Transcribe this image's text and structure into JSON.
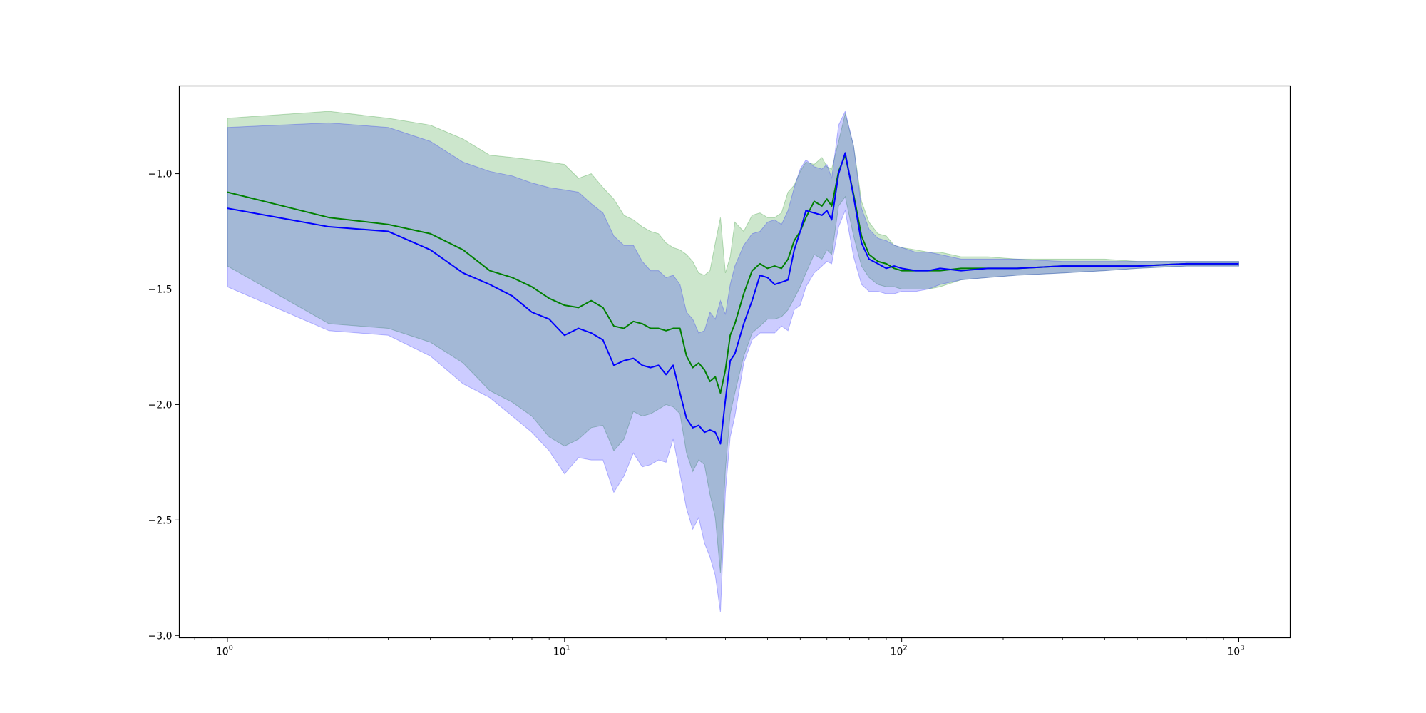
{
  "chart_data": {
    "type": "line",
    "title": "",
    "xlabel": "",
    "ylabel": "",
    "xscale": "log",
    "xlim": [
      0.72,
      1420
    ],
    "ylim": [
      -3.01,
      -0.62
    ],
    "grid": false,
    "x_ticks": [
      {
        "base": "10",
        "exp": "0",
        "value": 1
      },
      {
        "base": "10",
        "exp": "1",
        "value": 10
      },
      {
        "base": "10",
        "exp": "2",
        "value": 100
      },
      {
        "base": "10",
        "exp": "3",
        "value": 1000
      }
    ],
    "y_ticks": [
      {
        "label": "−1.0",
        "value": -1.0
      },
      {
        "label": "−1.5",
        "value": -1.5
      },
      {
        "label": "−2.0",
        "value": -2.0
      },
      {
        "label": "−2.5",
        "value": -2.5
      },
      {
        "label": "−3.0",
        "value": -3.0
      }
    ],
    "series": [
      {
        "color": "#008000",
        "band_color": "#008000",
        "band_opacity": 0.2,
        "x": [
          1,
          2,
          3,
          4,
          5,
          6,
          7,
          8,
          9,
          10,
          11,
          12,
          13,
          14,
          15,
          16,
          17,
          18,
          19,
          20,
          21,
          22,
          23,
          24,
          25,
          26,
          27,
          28,
          29,
          30,
          31,
          32,
          34,
          36,
          38,
          40,
          42,
          44,
          46,
          48,
          50,
          52,
          55,
          58,
          60,
          62,
          65,
          68,
          72,
          76,
          80,
          85,
          90,
          95,
          100,
          110,
          120,
          130,
          150,
          180,
          220,
          300,
          400,
          500,
          700,
          900,
          1000
        ],
        "y": [
          -1.08,
          -1.19,
          -1.22,
          -1.26,
          -1.33,
          -1.42,
          -1.45,
          -1.49,
          -1.54,
          -1.57,
          -1.58,
          -1.55,
          -1.58,
          -1.66,
          -1.67,
          -1.64,
          -1.65,
          -1.67,
          -1.67,
          -1.68,
          -1.67,
          -1.67,
          -1.79,
          -1.84,
          -1.82,
          -1.85,
          -1.9,
          -1.88,
          -1.95,
          -1.85,
          -1.7,
          -1.65,
          -1.52,
          -1.42,
          -1.39,
          -1.41,
          -1.4,
          -1.41,
          -1.37,
          -1.29,
          -1.25,
          -1.19,
          -1.12,
          -1.14,
          -1.11,
          -1.14,
          -0.99,
          -0.92,
          -1.09,
          -1.27,
          -1.35,
          -1.38,
          -1.39,
          -1.41,
          -1.42,
          -1.42,
          -1.42,
          -1.42,
          -1.41,
          -1.41,
          -1.41,
          -1.4,
          -1.4,
          -1.4,
          -1.39,
          -1.39,
          -1.39
        ],
        "upper": [
          -0.76,
          -0.73,
          -0.76,
          -0.79,
          -0.85,
          -0.92,
          -0.93,
          -0.94,
          -0.95,
          -0.96,
          -1.02,
          -1.0,
          -1.06,
          -1.11,
          -1.18,
          -1.2,
          -1.23,
          -1.25,
          -1.26,
          -1.3,
          -1.32,
          -1.33,
          -1.35,
          -1.38,
          -1.43,
          -1.44,
          -1.42,
          -1.3,
          -1.19,
          -1.43,
          -1.36,
          -1.21,
          -1.25,
          -1.18,
          -1.17,
          -1.19,
          -1.19,
          -1.17,
          -1.08,
          -1.05,
          -0.99,
          -0.95,
          -0.96,
          -0.93,
          -0.97,
          -0.98,
          -0.86,
          -0.74,
          -0.88,
          -1.12,
          -1.21,
          -1.26,
          -1.27,
          -1.31,
          -1.32,
          -1.33,
          -1.34,
          -1.34,
          -1.36,
          -1.36,
          -1.37,
          -1.37,
          -1.37,
          -1.38,
          -1.38,
          -1.38,
          -1.38
        ],
        "lower": [
          -1.4,
          -1.65,
          -1.67,
          -1.73,
          -1.82,
          -1.94,
          -1.99,
          -2.05,
          -2.14,
          -2.18,
          -2.15,
          -2.1,
          -2.09,
          -2.2,
          -2.15,
          -2.03,
          -2.05,
          -2.04,
          -2.02,
          -2.0,
          -2.01,
          -2.04,
          -2.21,
          -2.29,
          -2.24,
          -2.26,
          -2.39,
          -2.49,
          -2.73,
          -2.28,
          -2.04,
          -1.95,
          -1.79,
          -1.69,
          -1.66,
          -1.63,
          -1.63,
          -1.62,
          -1.59,
          -1.54,
          -1.49,
          -1.43,
          -1.35,
          -1.37,
          -1.33,
          -1.35,
          -1.14,
          -1.1,
          -1.27,
          -1.4,
          -1.45,
          -1.48,
          -1.49,
          -1.49,
          -1.5,
          -1.5,
          -1.5,
          -1.49,
          -1.46,
          -1.45,
          -1.44,
          -1.43,
          -1.42,
          -1.41,
          -1.4,
          -1.4,
          -1.4
        ]
      },
      {
        "color": "#0000ff",
        "band_color": "#0000ff",
        "band_opacity": 0.2,
        "x": [
          1,
          2,
          3,
          4,
          5,
          6,
          7,
          8,
          9,
          10,
          11,
          12,
          13,
          14,
          15,
          16,
          17,
          18,
          19,
          20,
          21,
          22,
          23,
          24,
          25,
          26,
          27,
          28,
          29,
          30,
          31,
          32,
          34,
          36,
          38,
          40,
          42,
          44,
          46,
          48,
          50,
          52,
          55,
          58,
          60,
          62,
          65,
          68,
          72,
          76,
          80,
          85,
          90,
          95,
          100,
          110,
          120,
          130,
          150,
          180,
          220,
          300,
          400,
          500,
          700,
          900,
          1000
        ],
        "y": [
          -1.15,
          -1.23,
          -1.25,
          -1.33,
          -1.43,
          -1.48,
          -1.53,
          -1.6,
          -1.63,
          -1.7,
          -1.67,
          -1.69,
          -1.72,
          -1.83,
          -1.81,
          -1.8,
          -1.83,
          -1.84,
          -1.83,
          -1.87,
          -1.83,
          -1.95,
          -2.06,
          -2.1,
          -2.09,
          -2.12,
          -2.11,
          -2.12,
          -2.17,
          -1.98,
          -1.81,
          -1.78,
          -1.65,
          -1.55,
          -1.44,
          -1.45,
          -1.48,
          -1.47,
          -1.46,
          -1.33,
          -1.25,
          -1.16,
          -1.17,
          -1.18,
          -1.16,
          -1.2,
          -1.0,
          -0.91,
          -1.1,
          -1.3,
          -1.37,
          -1.39,
          -1.41,
          -1.4,
          -1.41,
          -1.42,
          -1.42,
          -1.41,
          -1.42,
          -1.41,
          -1.41,
          -1.4,
          -1.4,
          -1.4,
          -1.39,
          -1.39,
          -1.39
        ],
        "upper": [
          -0.8,
          -0.78,
          -0.8,
          -0.86,
          -0.95,
          -0.99,
          -1.01,
          -1.04,
          -1.06,
          -1.07,
          -1.08,
          -1.13,
          -1.17,
          -1.27,
          -1.31,
          -1.31,
          -1.38,
          -1.42,
          -1.42,
          -1.45,
          -1.44,
          -1.48,
          -1.6,
          -1.63,
          -1.69,
          -1.68,
          -1.6,
          -1.63,
          -1.55,
          -1.61,
          -1.48,
          -1.4,
          -1.31,
          -1.26,
          -1.25,
          -1.21,
          -1.2,
          -1.22,
          -1.16,
          -1.06,
          -0.98,
          -0.94,
          -0.97,
          -0.98,
          -0.96,
          -1.02,
          -0.79,
          -0.73,
          -0.88,
          -1.15,
          -1.24,
          -1.28,
          -1.29,
          -1.31,
          -1.32,
          -1.34,
          -1.34,
          -1.35,
          -1.37,
          -1.37,
          -1.37,
          -1.38,
          -1.38,
          -1.38,
          -1.38,
          -1.38,
          -1.38
        ],
        "lower": [
          -1.49,
          -1.68,
          -1.7,
          -1.79,
          -1.91,
          -1.97,
          -2.05,
          -2.12,
          -2.2,
          -2.3,
          -2.23,
          -2.24,
          -2.24,
          -2.38,
          -2.31,
          -2.21,
          -2.27,
          -2.26,
          -2.24,
          -2.25,
          -2.15,
          -2.3,
          -2.45,
          -2.54,
          -2.49,
          -2.6,
          -2.66,
          -2.74,
          -2.9,
          -2.38,
          -2.14,
          -2.05,
          -1.82,
          -1.72,
          -1.69,
          -1.69,
          -1.69,
          -1.66,
          -1.68,
          -1.59,
          -1.57,
          -1.49,
          -1.43,
          -1.4,
          -1.38,
          -1.39,
          -1.23,
          -1.16,
          -1.36,
          -1.48,
          -1.51,
          -1.51,
          -1.52,
          -1.52,
          -1.51,
          -1.51,
          -1.5,
          -1.48,
          -1.46,
          -1.45,
          -1.44,
          -1.43,
          -1.42,
          -1.41,
          -1.4,
          -1.4,
          -1.4
        ]
      }
    ]
  }
}
